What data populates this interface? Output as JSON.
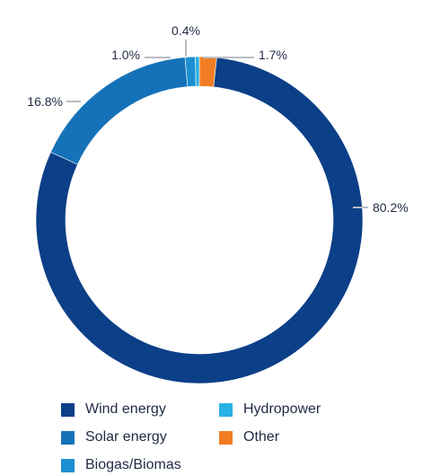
{
  "chart_data": {
    "type": "pie",
    "donut": true,
    "categories": [
      "Wind energy",
      "Solar energy",
      "Biogas/Biomas",
      "Hydropower",
      "Other"
    ],
    "values": [
      80.2,
      16.8,
      1.0,
      0.4,
      1.7
    ],
    "value_labels": [
      "80.2%",
      "16.8%",
      "1.0%",
      "0.4%",
      "1.7%"
    ],
    "colors": [
      "#0b3f87",
      "#1672b8",
      "#1d8fd1",
      "#29b2e6",
      "#f07d23"
    ],
    "legend_position": "bottom",
    "legend_order": [
      0,
      3,
      1,
      4,
      2
    ]
  }
}
